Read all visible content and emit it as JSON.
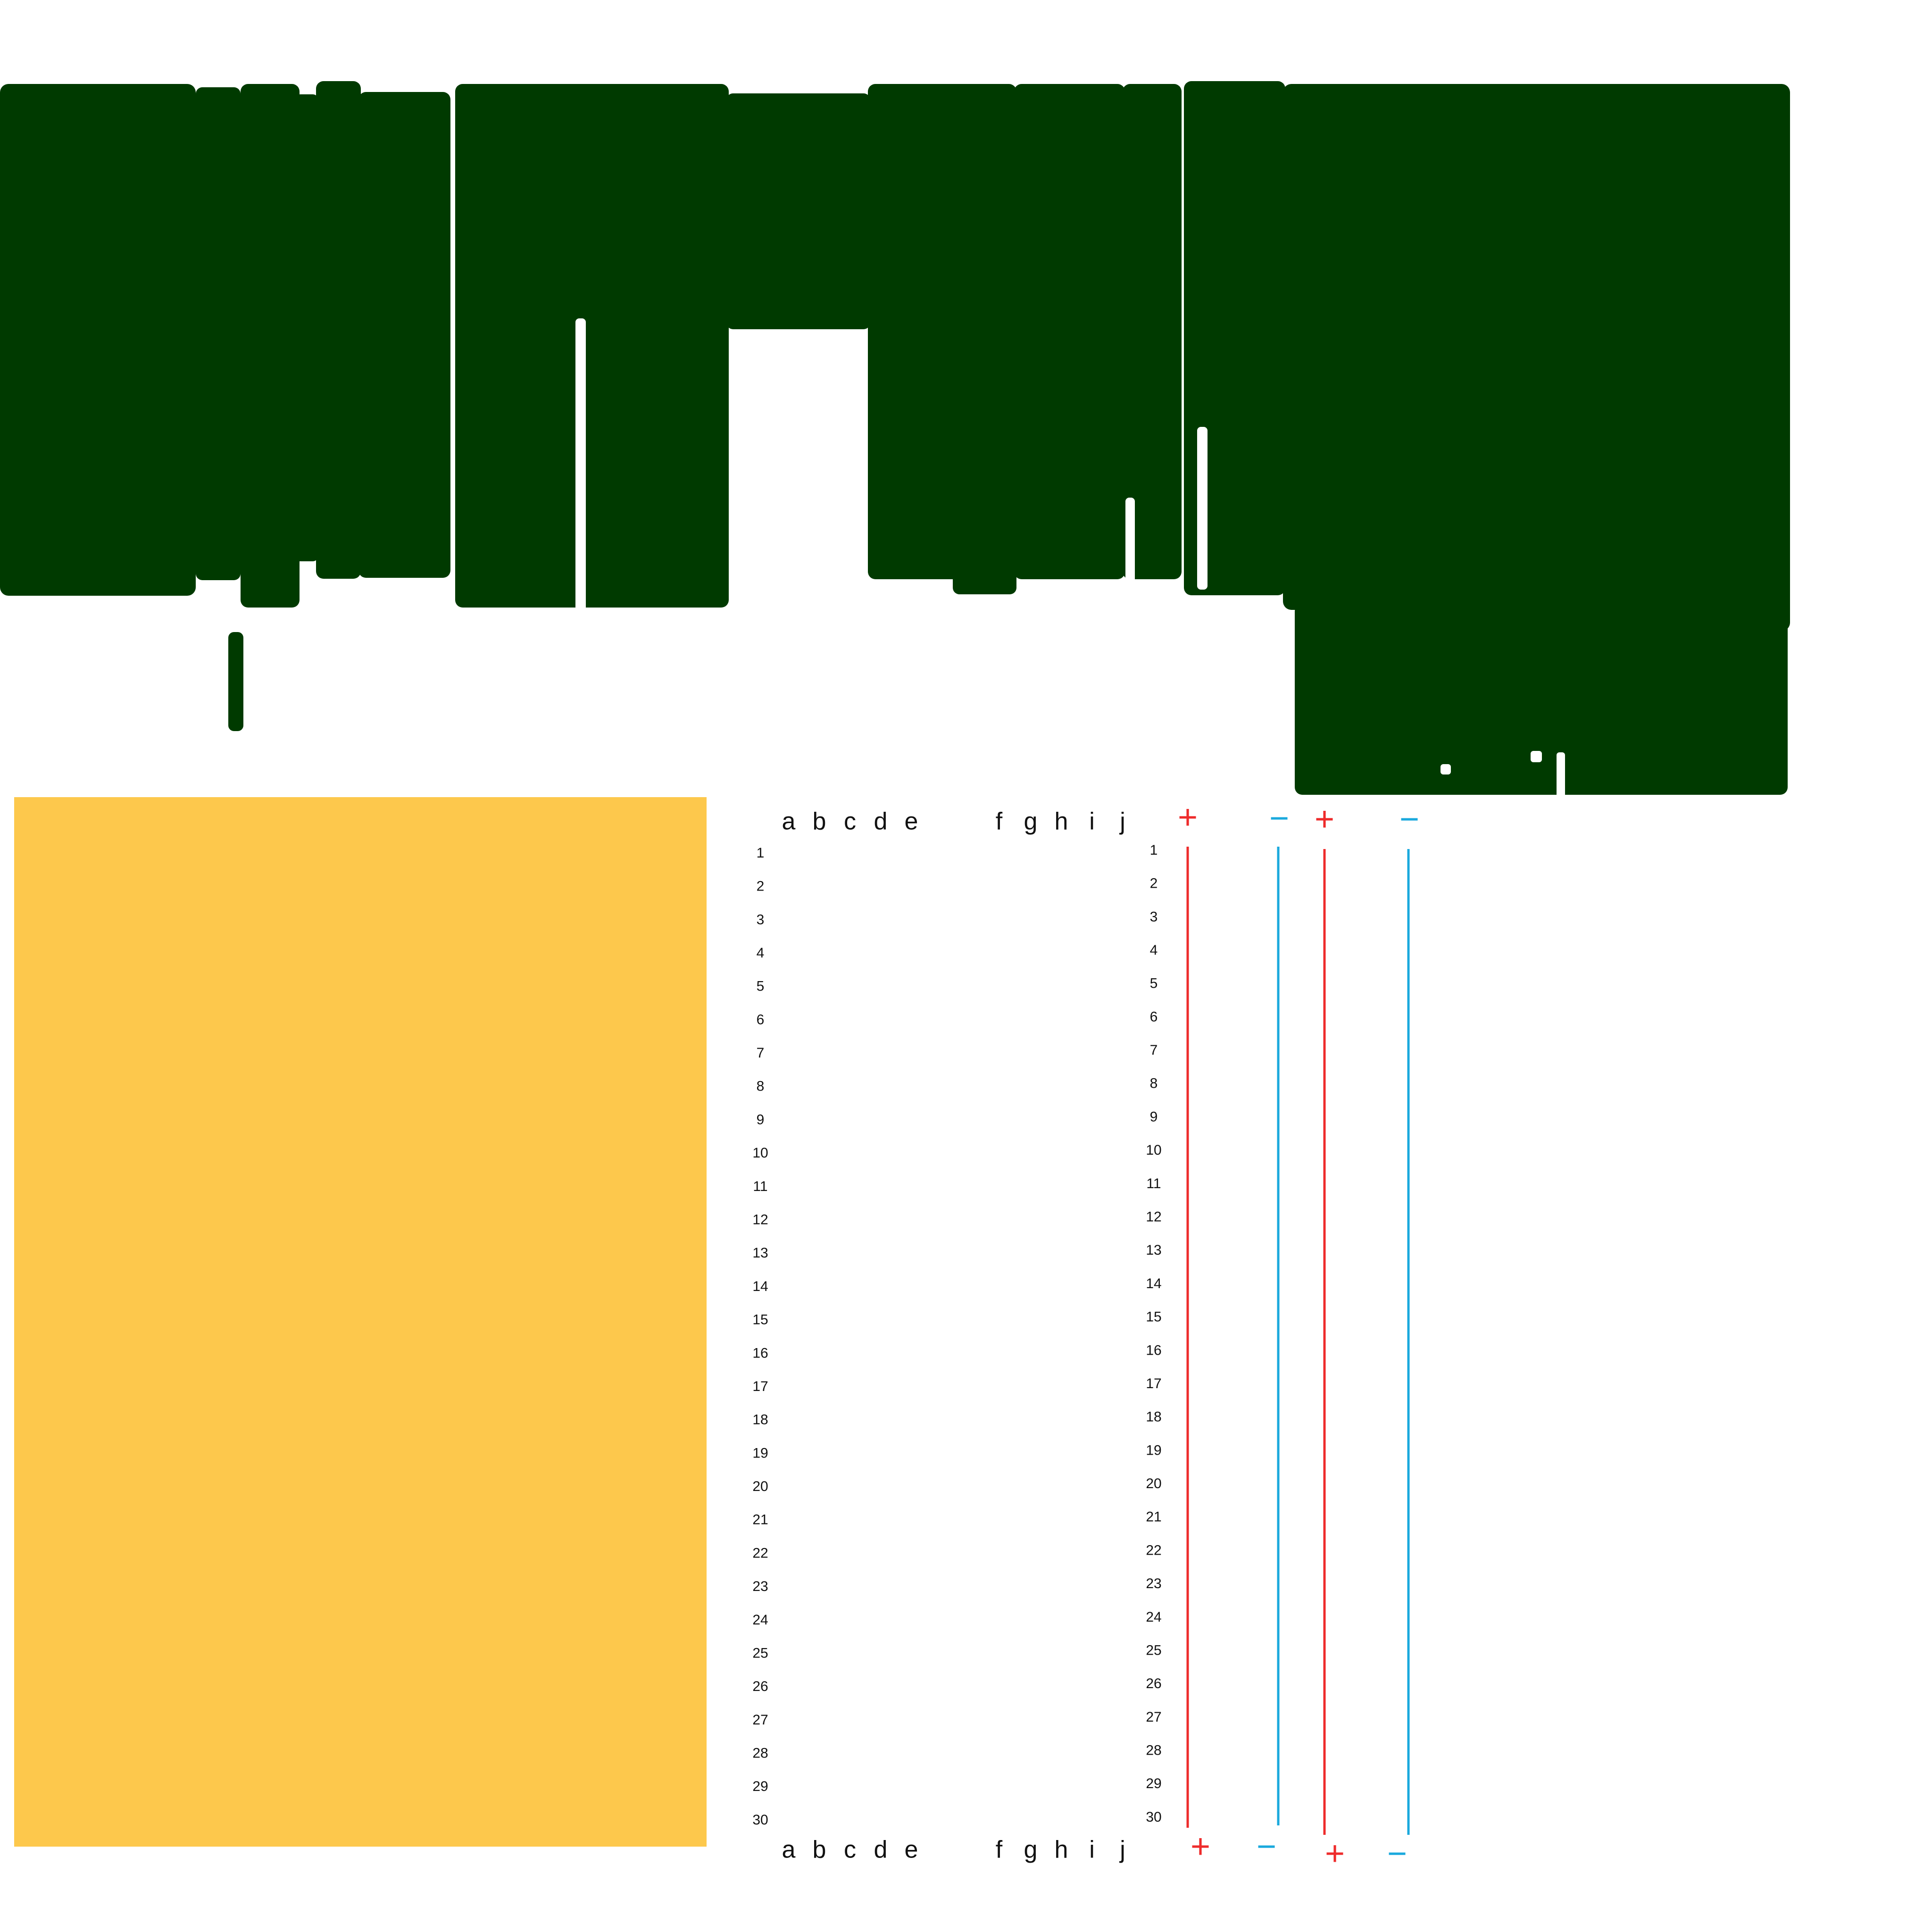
{
  "colors": {
    "background": "#ffffff",
    "wire_mass": "#003a00",
    "yellow_block": "#fdc84c",
    "rail_positive": "#ee2b2b",
    "rail_negative": "#1aa9dd",
    "label_text": "#111111"
  },
  "breadboard": {
    "column_letters": [
      "a",
      "b",
      "c",
      "d",
      "e",
      "f",
      "g",
      "h",
      "i",
      "j"
    ],
    "row_numbers": [
      "1",
      "2",
      "3",
      "4",
      "5",
      "6",
      "7",
      "8",
      "9",
      "10",
      "11",
      "12",
      "13",
      "14",
      "15",
      "16",
      "17",
      "18",
      "19",
      "20",
      "21",
      "22",
      "23",
      "24",
      "25",
      "26",
      "27",
      "28",
      "29",
      "30"
    ],
    "rail_symbols": {
      "positive": "+",
      "negative": "−"
    }
  }
}
